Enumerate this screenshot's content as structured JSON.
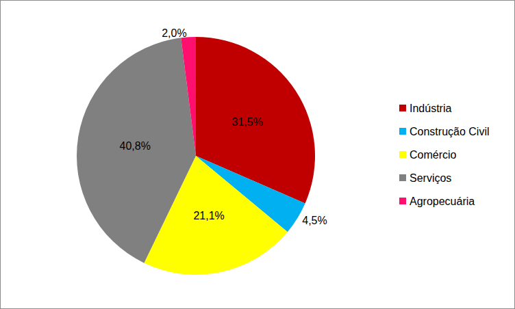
{
  "chart_data": {
    "type": "pie",
    "categories": [
      "Indústria",
      "Construção Civil",
      "Comércio",
      "Serviços",
      "Agropecuária"
    ],
    "values": [
      31.5,
      4.5,
      21.1,
      40.8,
      2.0
    ],
    "value_labels": [
      "31,5%",
      "4,5%",
      "21,1%",
      "40,8%",
      "2,0%"
    ],
    "colors": [
      "#c00000",
      "#00b0f0",
      "#ffff00",
      "#808080",
      "#ff0f6e"
    ],
    "data_labels": true,
    "legend": "right"
  }
}
